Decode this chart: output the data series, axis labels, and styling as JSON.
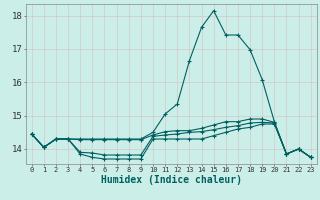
{
  "xlabel": "Humidex (Indice chaleur)",
  "bg_color": "#cceee8",
  "grid_color_minor": "#d4c8c8",
  "grid_color_major": "#c8b8b8",
  "line_color": "#006060",
  "x_ticks": [
    0,
    1,
    2,
    3,
    4,
    5,
    6,
    7,
    8,
    9,
    10,
    11,
    12,
    13,
    14,
    15,
    16,
    17,
    18,
    19,
    20,
    21,
    22,
    23
  ],
  "y_ticks": [
    14,
    15,
    16,
    17,
    18
  ],
  "ylim": [
    13.55,
    18.35
  ],
  "xlim": [
    -0.5,
    23.5
  ],
  "series": [
    [
      14.45,
      14.05,
      14.3,
      14.3,
      13.85,
      13.75,
      13.7,
      13.7,
      13.7,
      13.7,
      14.3,
      14.3,
      14.3,
      14.3,
      14.3,
      14.4,
      14.5,
      14.6,
      14.65,
      14.75,
      14.75,
      13.85,
      14.0,
      13.75
    ],
    [
      14.45,
      14.05,
      14.3,
      14.3,
      13.9,
      13.88,
      13.82,
      13.82,
      13.82,
      13.82,
      14.38,
      14.42,
      14.45,
      14.5,
      14.52,
      14.58,
      14.65,
      14.7,
      14.78,
      14.8,
      14.78,
      13.85,
      14.0,
      13.75
    ],
    [
      14.45,
      14.05,
      14.3,
      14.3,
      14.28,
      14.28,
      14.28,
      14.28,
      14.28,
      14.28,
      14.42,
      14.52,
      14.55,
      14.55,
      14.62,
      14.72,
      14.82,
      14.82,
      14.9,
      14.9,
      14.8,
      13.85,
      14.0,
      13.75
    ],
    [
      14.45,
      14.05,
      14.3,
      14.3,
      14.3,
      14.3,
      14.3,
      14.3,
      14.3,
      14.3,
      14.5,
      15.05,
      15.35,
      16.65,
      17.65,
      18.15,
      17.42,
      17.42,
      16.98,
      16.08,
      14.82,
      13.85,
      14.0,
      13.75
    ]
  ]
}
